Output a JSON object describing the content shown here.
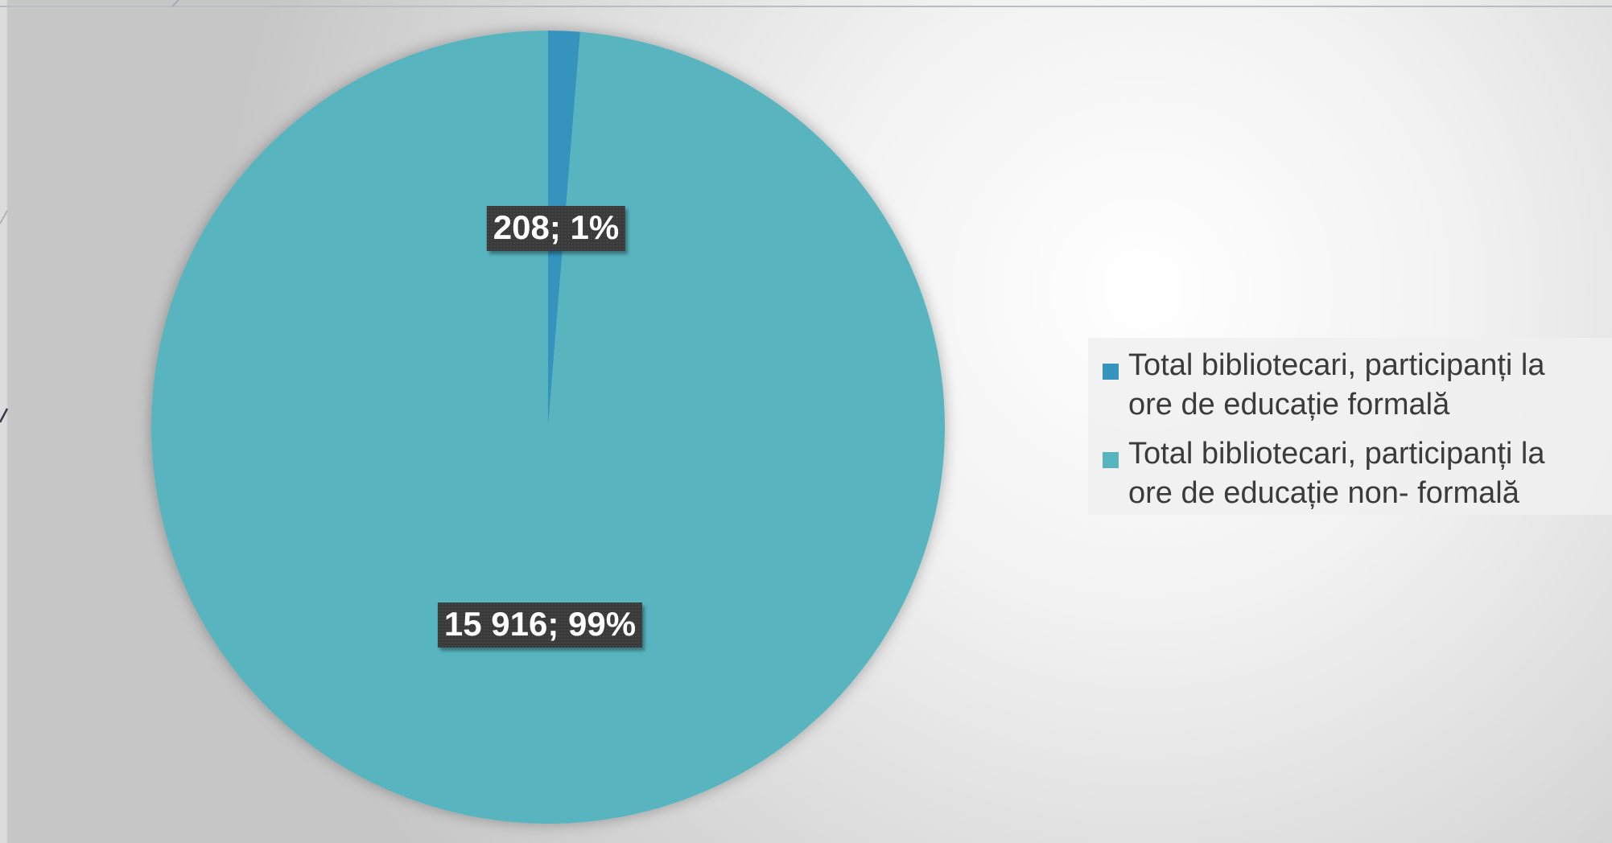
{
  "colors": {
    "series_1": "#3593bd",
    "series_2": "#58b5c0"
  },
  "chart_data": {
    "type": "pie",
    "title": "",
    "categories": [
      "Total bibliotecari, participanți la ore de educație formală",
      "Total bibliotecari, participanți la ore de educație non- formală"
    ],
    "values": [
      208,
      15916
    ],
    "data_labels": [
      "208; 1%",
      "15 916; 99%"
    ],
    "legend_placement": "right",
    "legend": [
      {
        "line1": "Total bibliotecari, participanți la",
        "line2": "ore de educație formală"
      },
      {
        "line1": "Total bibliotecari, participanți la",
        "line2": "ore de educație non- formală"
      }
    ]
  }
}
